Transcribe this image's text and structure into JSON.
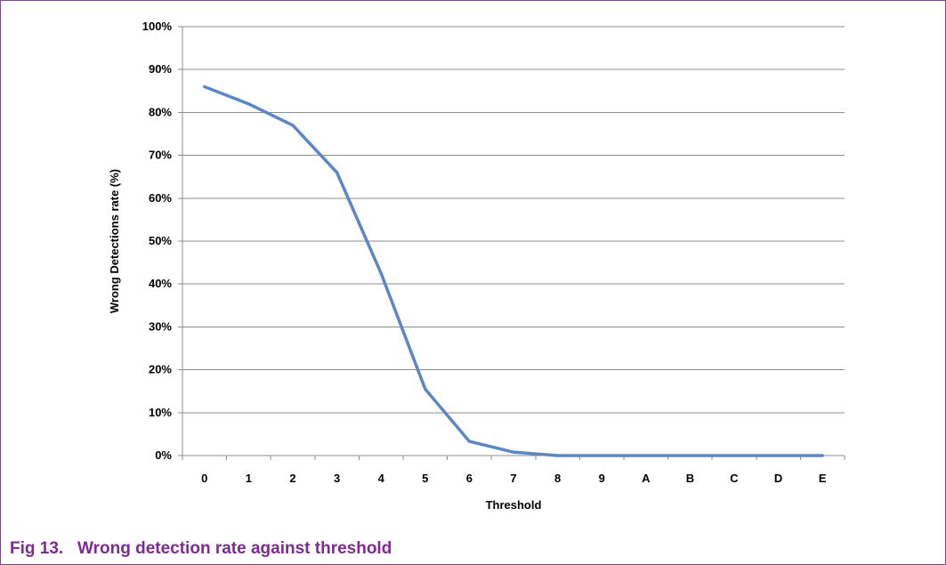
{
  "caption": "Fig 13.   Wrong detection rate against threshold",
  "colors": {
    "series_line": "#5b87c4",
    "gridline": "#8c8c8c",
    "caption": "#7b2c8c",
    "frame": "#7b4a8c"
  },
  "chart_data": {
    "type": "line",
    "title": "",
    "xlabel": "Threshold",
    "ylabel": "Wrong Detections rate (%)",
    "categories": [
      "0",
      "1",
      "2",
      "3",
      "4",
      "5",
      "6",
      "7",
      "8",
      "9",
      "A",
      "B",
      "C",
      "D",
      "E"
    ],
    "series": [
      {
        "values": [
          86,
          82,
          77,
          66,
          42.5,
          15.5,
          3.3,
          0.8,
          0,
          0,
          0,
          0,
          0,
          0,
          0
        ]
      }
    ],
    "ylim": [
      0,
      100
    ],
    "yticks": [
      "0%",
      "10%",
      "20%",
      "30%",
      "40%",
      "50%",
      "60%",
      "70%",
      "80%",
      "90%",
      "100%"
    ],
    "grid": true,
    "legend": "none"
  }
}
